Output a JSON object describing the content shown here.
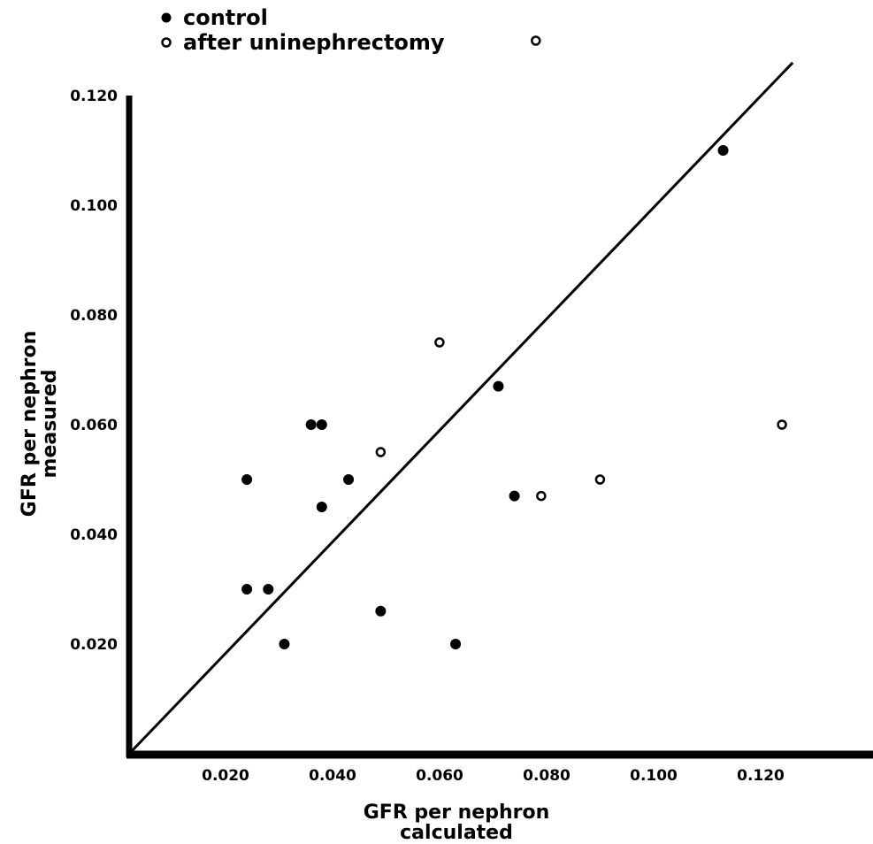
{
  "chart_data": {
    "type": "scatter",
    "title": "",
    "xlabel": [
      "GFR per nephron",
      "calculated"
    ],
    "ylabel": [
      "GFR per nephron",
      "measured"
    ],
    "xlim": [
      0,
      0.135
    ],
    "ylim": [
      0,
      0.13
    ],
    "x_ticks": [
      "0.020",
      "0.040",
      "0.060",
      "0.080",
      "0.100",
      "0.120"
    ],
    "y_ticks": [
      "0.020",
      "0.040",
      "0.060",
      "0.080",
      "0.100",
      "0.120"
    ],
    "grid": false,
    "legend_position": "top-left",
    "identity_line": {
      "from": [
        0,
        0
      ],
      "to": [
        0.124,
        0.126
      ]
    },
    "series": [
      {
        "name": "control",
        "marker": "filled-circle",
        "points": [
          [
            0.022,
            0.05
          ],
          [
            0.022,
            0.03
          ],
          [
            0.026,
            0.03
          ],
          [
            0.029,
            0.02
          ],
          [
            0.034,
            0.06
          ],
          [
            0.036,
            0.06
          ],
          [
            0.036,
            0.045
          ],
          [
            0.041,
            0.05
          ],
          [
            0.047,
            0.026
          ],
          [
            0.061,
            0.02
          ],
          [
            0.069,
            0.067
          ],
          [
            0.072,
            0.047
          ],
          [
            0.111,
            0.11
          ]
        ]
      },
      {
        "name": "after uninephrectomy",
        "marker": "open-circle",
        "points": [
          [
            0.047,
            0.055
          ],
          [
            0.058,
            0.075
          ],
          [
            0.077,
            0.047
          ],
          [
            0.088,
            0.05
          ],
          [
            0.122,
            0.06
          ],
          [
            0.076,
            0.13
          ]
        ]
      }
    ]
  }
}
